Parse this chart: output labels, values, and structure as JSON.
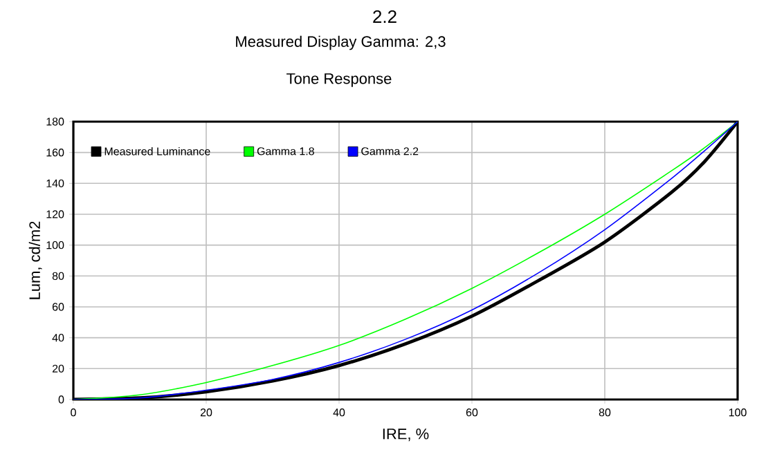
{
  "chart_data": {
    "type": "line",
    "title": "2.2",
    "subtitle": "Measured Display Gamma: 2,3",
    "annotations": [
      "Tone Response"
    ],
    "xlabel": "IRE, %",
    "ylabel": "Lum, cd/m2",
    "x": [
      0,
      10,
      20,
      30,
      40,
      50,
      60,
      70,
      80,
      90,
      95,
      100
    ],
    "series": [
      {
        "name": "Measured Luminance",
        "color": "#000000",
        "values": [
          0,
          1,
          5,
          12,
          22,
          36,
          54,
          77,
          102,
          134,
          154,
          180
        ]
      },
      {
        "name": "Gamma 1.8",
        "color": "#00ff00",
        "values": [
          0,
          3,
          11,
          22,
          35,
          52,
          72,
          95,
          120,
          148,
          163,
          180
        ]
      },
      {
        "name": "Gamma 2.2",
        "color": "#0000ff",
        "values": [
          0,
          1,
          6,
          13,
          24,
          39,
          58,
          82,
          110,
          143,
          161,
          180
        ]
      }
    ],
    "xlim": [
      0,
      100
    ],
    "ylim": [
      0,
      180
    ],
    "xticks": [
      0,
      20,
      40,
      60,
      80,
      100
    ],
    "yticks": [
      0,
      20,
      40,
      60,
      80,
      100,
      120,
      140,
      160,
      180
    ],
    "grid": true,
    "legend": "top left",
    "marker": "none",
    "line_style": "solid"
  }
}
